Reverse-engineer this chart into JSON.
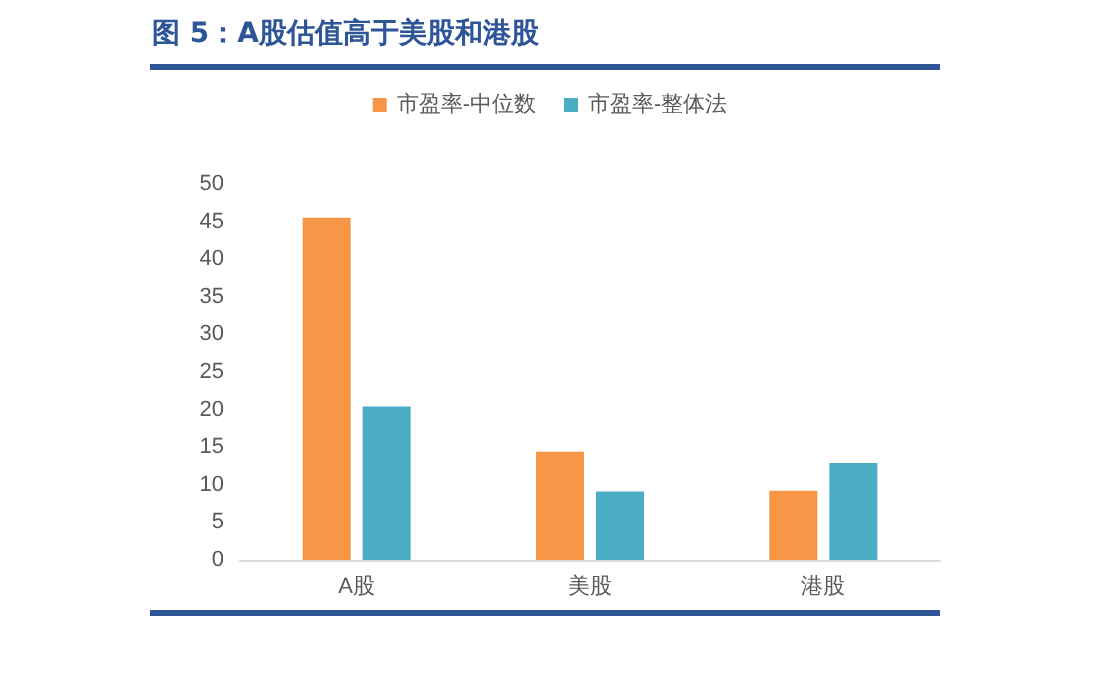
{
  "chart_data": {
    "type": "bar",
    "title": "图 5：A股估值高于美股和港股",
    "categories": [
      "A股",
      "美股",
      "港股"
    ],
    "series": [
      {
        "name": "市盈率-中位数",
        "color": "#f79646",
        "values": [
          45.5,
          14.4,
          9.2
        ]
      },
      {
        "name": "市盈率-整体法",
        "color": "#4bacc6",
        "values": [
          20.4,
          9.1,
          12.9
        ]
      }
    ],
    "ylim": [
      0,
      50
    ],
    "yticks": [
      0,
      5,
      10,
      15,
      20,
      25,
      30,
      35,
      40,
      45,
      50
    ],
    "grid": false,
    "legend": "top"
  }
}
